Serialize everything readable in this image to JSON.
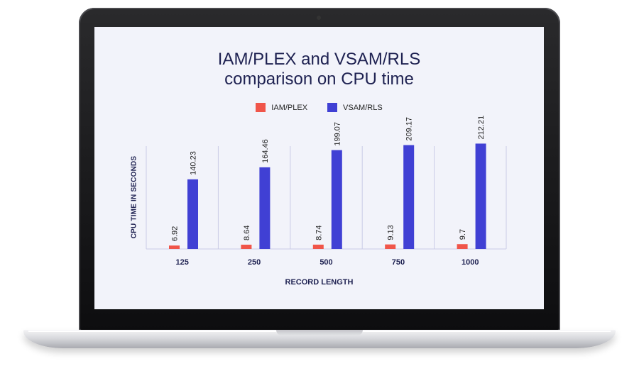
{
  "chart_data": {
    "type": "bar",
    "title_line1": "IAM/PLEX and VSAM/RLS",
    "title_line2": "comparison on CPU time",
    "xlabel": "RECORD LENGTH",
    "ylabel": "CPU TIME IN SECONDS",
    "categories": [
      "125",
      "250",
      "500",
      "750",
      "1000"
    ],
    "series": [
      {
        "name": "IAM/PLEX",
        "color": "#f0554a",
        "values": [
          6.92,
          8.64,
          8.74,
          9.13,
          9.7
        ],
        "labels": [
          "6.92",
          "8.64",
          "8.74",
          "9.13",
          "9.7"
        ]
      },
      {
        "name": "VSAM/RLS",
        "color": "#4040d4",
        "values": [
          140.23,
          164.46,
          199.07,
          209.17,
          212.21
        ],
        "labels": [
          "140.23",
          "164.46",
          "199.07",
          "209.17",
          "212.21"
        ]
      }
    ],
    "ylim": [
      0,
      240
    ],
    "grid": "vertical separators",
    "legend": "top-center"
  }
}
